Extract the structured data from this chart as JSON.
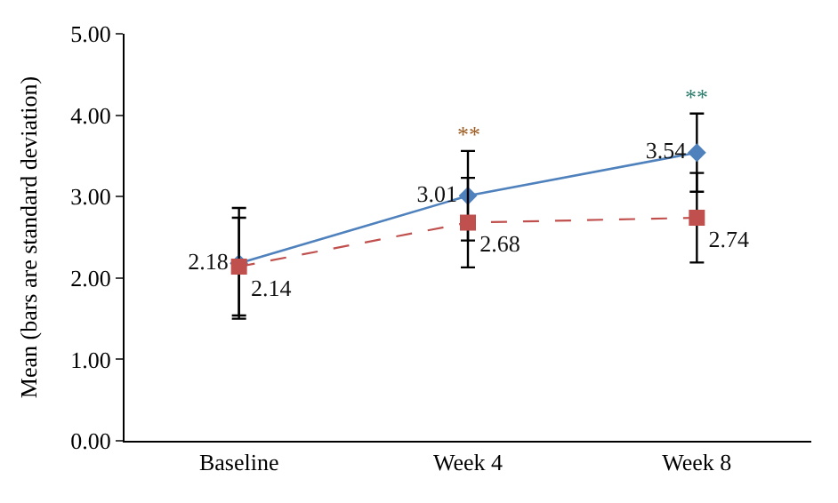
{
  "chart_data": {
    "type": "line",
    "ylabel": "Mean (bars are standard deviation)",
    "categories": [
      "Baseline",
      "Week 4",
      "Week 8"
    ],
    "series": [
      {
        "color": "#4f81bd",
        "values": [
          2.18,
          3.01,
          3.54
        ],
        "errors": [
          0.68,
          0.55,
          0.48
        ],
        "marker": "diamond",
        "line_style": "solid"
      },
      {
        "color": "#c0504d",
        "values": [
          2.14,
          2.68,
          2.74
        ],
        "errors": [
          0.6,
          0.55,
          0.55
        ],
        "marker": "square",
        "line_style": "dashed"
      }
    ],
    "annotations": [
      {
        "text": "**",
        "x": "Week 4",
        "y": 3.56
      },
      {
        "text": "**",
        "x": "Week 8",
        "y": 4.02
      }
    ],
    "ylim": [
      0,
      5
    ],
    "yticks": [
      {
        "value": 0,
        "label": "0.00"
      },
      {
        "value": 1,
        "label": "1.00"
      },
      {
        "value": 2,
        "label": "2.00"
      },
      {
        "value": 3,
        "label": "3.00"
      },
      {
        "value": 4,
        "label": "4.00"
      },
      {
        "value": 5,
        "label": "5.00"
      }
    ],
    "data_labels": true
  }
}
